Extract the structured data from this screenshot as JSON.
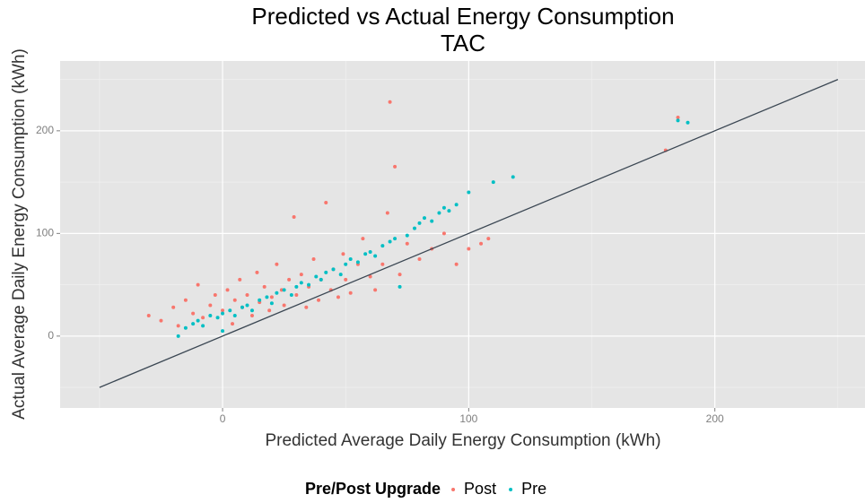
{
  "chart_data": {
    "type": "scatter",
    "title": "Predicted vs Actual Energy Consumption",
    "subtitle": "TAC",
    "x_label": "Predicted Average Daily Energy Consumption (kWh)",
    "y_label": "Actual Average Daily Energy Consumption (kWh)",
    "legend_title": "Pre/Post Upgrade",
    "legend_position": "bottom",
    "grid": true,
    "xlim": [
      -66,
      261
    ],
    "ylim": [
      -70,
      268
    ],
    "xticks": [
      0,
      100,
      200
    ],
    "yticks": [
      0,
      100,
      200
    ],
    "x_minor_grid": [
      -50,
      50,
      150,
      250
    ],
    "y_minor_grid": [
      -50,
      50,
      150,
      250
    ],
    "reference_line": {
      "color": "#3b4753",
      "x": [
        -50,
        250
      ],
      "y": [
        -50,
        250
      ]
    },
    "series": [
      {
        "name": "Post",
        "color": "#f8766d",
        "x": [
          -30,
          -25,
          -20,
          -18,
          -15,
          -12,
          -10,
          -8,
          -5,
          -3,
          0,
          2,
          4,
          5,
          7,
          8,
          10,
          12,
          14,
          15,
          17,
          19,
          20,
          22,
          24,
          25,
          27,
          29,
          30,
          32,
          34,
          35,
          37,
          39,
          40,
          42,
          44,
          45,
          47,
          49,
          50,
          52,
          55,
          57,
          60,
          62,
          65,
          67,
          68,
          70,
          72,
          75,
          80,
          85,
          90,
          95,
          100,
          105,
          108,
          180,
          185
        ],
        "values": [
          20,
          15,
          28,
          10,
          35,
          22,
          50,
          18,
          30,
          40,
          25,
          45,
          12,
          35,
          55,
          28,
          40,
          20,
          62,
          33,
          48,
          25,
          38,
          70,
          45,
          30,
          55,
          116,
          40,
          60,
          28,
          48,
          75,
          35,
          55,
          130,
          45,
          65,
          38,
          80,
          55,
          42,
          70,
          95,
          58,
          45,
          70,
          120,
          228,
          165,
          60,
          90,
          75,
          85,
          100,
          70,
          85,
          90,
          95,
          181,
          213
        ]
      },
      {
        "name": "Pre",
        "color": "#00bfc4",
        "x": [
          -18,
          -15,
          -12,
          -10,
          -8,
          -5,
          -2,
          0,
          0,
          3,
          5,
          8,
          10,
          12,
          15,
          18,
          20,
          22,
          25,
          28,
          30,
          32,
          35,
          38,
          40,
          42,
          45,
          48,
          50,
          52,
          55,
          58,
          60,
          62,
          65,
          68,
          70,
          72,
          75,
          78,
          80,
          82,
          85,
          88,
          90,
          92,
          95,
          100,
          110,
          118,
          185,
          189
        ],
        "values": [
          0,
          8,
          12,
          15,
          10,
          20,
          18,
          22,
          5,
          25,
          20,
          28,
          30,
          25,
          35,
          38,
          32,
          42,
          45,
          40,
          48,
          52,
          50,
          58,
          55,
          62,
          65,
          60,
          70,
          75,
          72,
          80,
          82,
          78,
          88,
          92,
          95,
          48,
          98,
          105,
          110,
          115,
          112,
          120,
          125,
          122,
          128,
          140,
          150,
          155,
          210,
          208
        ]
      }
    ]
  }
}
